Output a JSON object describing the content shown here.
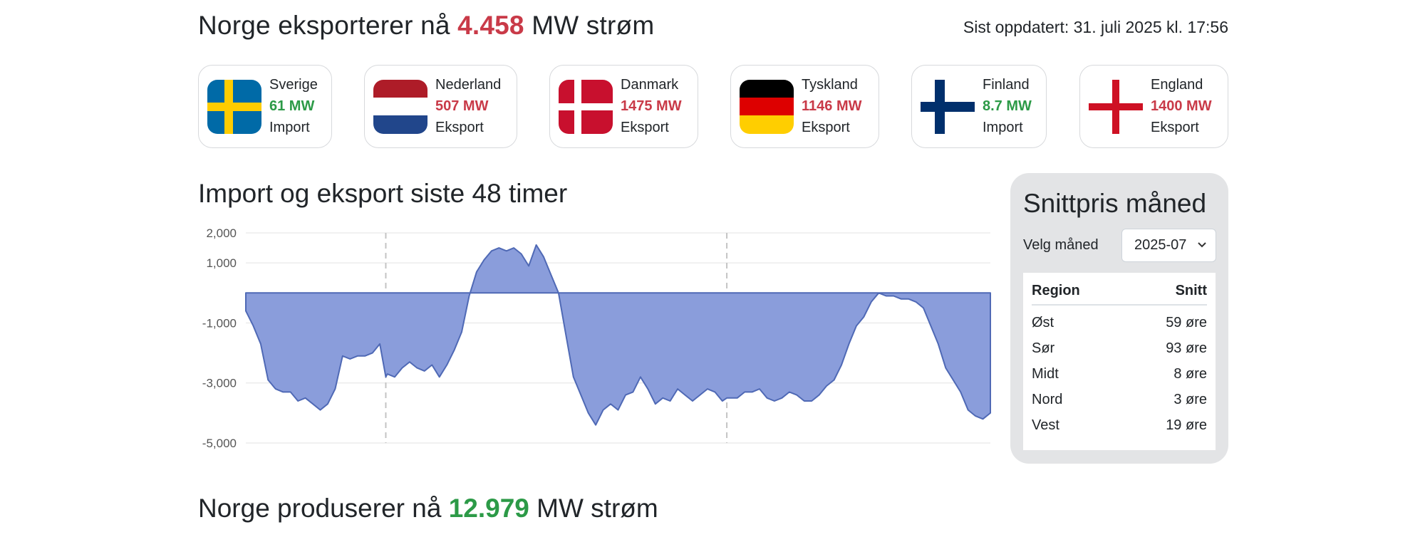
{
  "export_headline": {
    "prefix": "Norge eksporterer nå",
    "value": "4.458",
    "suffix": "MW strøm"
  },
  "updated": "Sist oppdatert: 31. juli 2025 kl. 17:56",
  "countries": [
    {
      "name": "Sverige",
      "mw": "61 MW",
      "direction": "Import",
      "color": "#2c9a47",
      "flag_icon": "sweden-flag-icon"
    },
    {
      "name": "Nederland",
      "mw": "507 MW",
      "direction": "Eksport",
      "color": "#c93a48",
      "flag_icon": "netherlands-flag-icon"
    },
    {
      "name": "Danmark",
      "mw": "1475 MW",
      "direction": "Eksport",
      "color": "#c93a48",
      "flag_icon": "denmark-flag-icon"
    },
    {
      "name": "Tyskland",
      "mw": "1146 MW",
      "direction": "Eksport",
      "color": "#c93a48",
      "flag_icon": "germany-flag-icon"
    },
    {
      "name": "Finland",
      "mw": "8.7 MW",
      "direction": "Import",
      "color": "#2c9a47",
      "flag_icon": "finland-flag-icon"
    },
    {
      "name": "England",
      "mw": "1400 MW",
      "direction": "Eksport",
      "color": "#c93a48",
      "flag_icon": "england-flag-icon"
    }
  ],
  "chart_title": "Import og eksport siste 48 timer",
  "chart_data": {
    "type": "area",
    "title": "Import og eksport siste 48 timer",
    "ylim": [
      -5000,
      2000
    ],
    "yticks": [
      2000,
      1000,
      -1000,
      -3000,
      -5000
    ],
    "ytick_labels": [
      "2,000",
      "1,000",
      "-1,000",
      "-3,000",
      "-5,000"
    ],
    "grid": true,
    "fill_color": "#8a9ddb",
    "line_color": "#4f69b5",
    "day_separators": [
      0.188,
      0.646
    ],
    "x": [
      0,
      0.01,
      0.02,
      0.03,
      0.04,
      0.05,
      0.06,
      0.07,
      0.08,
      0.09,
      0.1,
      0.11,
      0.12,
      0.13,
      0.14,
      0.15,
      0.16,
      0.17,
      0.18,
      0.188,
      0.19,
      0.2,
      0.21,
      0.22,
      0.23,
      0.24,
      0.25,
      0.26,
      0.27,
      0.28,
      0.29,
      0.3,
      0.31,
      0.32,
      0.33,
      0.34,
      0.35,
      0.36,
      0.37,
      0.38,
      0.39,
      0.4,
      0.41,
      0.42,
      0.43,
      0.44,
      0.45,
      0.46,
      0.47,
      0.48,
      0.49,
      0.5,
      0.51,
      0.52,
      0.53,
      0.54,
      0.55,
      0.56,
      0.57,
      0.58,
      0.59,
      0.6,
      0.61,
      0.62,
      0.63,
      0.64,
      0.646,
      0.66,
      0.67,
      0.68,
      0.69,
      0.7,
      0.71,
      0.72,
      0.73,
      0.74,
      0.75,
      0.76,
      0.77,
      0.78,
      0.79,
      0.8,
      0.81,
      0.82,
      0.83,
      0.84,
      0.85,
      0.86,
      0.87,
      0.88,
      0.89,
      0.9,
      0.91,
      0.92,
      0.93,
      0.94,
      0.95,
      0.96,
      0.97,
      0.98,
      0.99,
      1.0
    ],
    "values": [
      -600,
      -1100,
      -1700,
      -2900,
      -3200,
      -3300,
      -3300,
      -3600,
      -3500,
      -3700,
      -3900,
      -3700,
      -3200,
      -2100,
      -2200,
      -2100,
      -2100,
      -2000,
      -1700,
      -2800,
      -2700,
      -2800,
      -2500,
      -2300,
      -2500,
      -2600,
      -2400,
      -2800,
      -2400,
      -1900,
      -1300,
      -100,
      700,
      1100,
      1400,
      1500,
      1400,
      1500,
      1300,
      900,
      1600,
      1200,
      600,
      0,
      -1400,
      -2800,
      -3400,
      -4000,
      -4400,
      -3900,
      -3700,
      -3900,
      -3400,
      -3300,
      -2800,
      -3200,
      -3700,
      -3500,
      -3600,
      -3200,
      -3400,
      -3600,
      -3400,
      -3200,
      -3300,
      -3600,
      -3500,
      -3500,
      -3300,
      -3300,
      -3200,
      -3500,
      -3600,
      -3500,
      -3300,
      -3400,
      -3600,
      -3600,
      -3400,
      -3100,
      -2900,
      -2400,
      -1700,
      -1100,
      -800,
      -300,
      0,
      -100,
      -100,
      -200,
      -200,
      -300,
      -500,
      -1100,
      -1700,
      -2500,
      -2900,
      -3300,
      -3900,
      -4100,
      -4200,
      -4000
    ]
  },
  "panel": {
    "title": "Snittpris måned",
    "month_label": "Velg måned",
    "month_value": "2025-07",
    "col_region": "Region",
    "col_avg": "Snitt",
    "rows": [
      {
        "region": "Øst",
        "avg": "59 øre"
      },
      {
        "region": "Sør",
        "avg": "93 øre"
      },
      {
        "region": "Midt",
        "avg": "8 øre"
      },
      {
        "region": "Nord",
        "avg": "3 øre"
      },
      {
        "region": "Vest",
        "avg": "19 øre"
      }
    ]
  },
  "production_headline": {
    "prefix": "Norge produserer nå",
    "value": "12.979",
    "suffix": "MW strøm"
  }
}
